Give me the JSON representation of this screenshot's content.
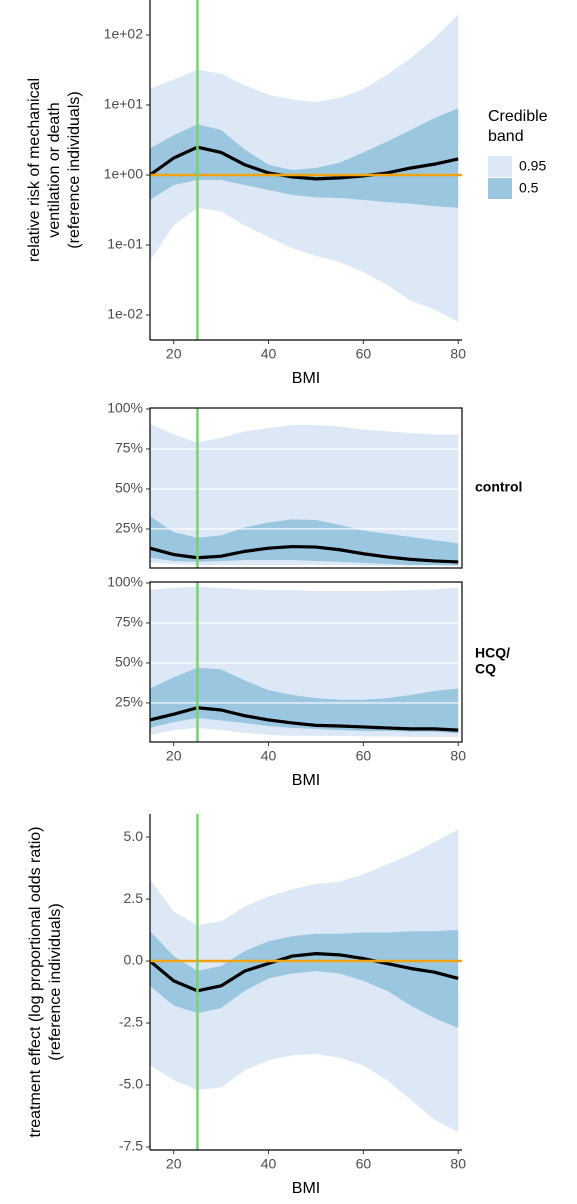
{
  "chart_data": [
    {
      "type": "line",
      "y_scale": "log",
      "ylabel": [
        "relative risk of mechanical",
        "ventilation or death",
        "(reference individuals)"
      ],
      "xlabel": "BMI",
      "xlim": [
        15,
        80.8
      ],
      "xticks": [
        20,
        40,
        60,
        80
      ],
      "ylim": [
        0.0044,
        316
      ],
      "yticks": [
        {
          "value": 0.01,
          "label": "1e-02"
        },
        {
          "value": 0.1,
          "label": "1e-01"
        },
        {
          "value": 1,
          "label": "1e+00"
        },
        {
          "value": 10,
          "label": "1e+01"
        },
        {
          "value": 100,
          "label": "1e+02"
        }
      ],
      "grid": false,
      "vline": 25,
      "vline_color": "#77d26f",
      "hline": 1,
      "hline_color": "#f0a30a",
      "x": [
        15,
        20,
        25,
        30,
        35,
        40,
        45,
        50,
        55,
        60,
        65,
        70,
        75,
        80
      ],
      "bands": [
        {
          "name": "0.95",
          "color": "#dce8f5",
          "upper": [
            17,
            23,
            32,
            28,
            19,
            14,
            12,
            11,
            12.6,
            17,
            27,
            47,
            90,
            195
          ],
          "lower": [
            0.06,
            0.19,
            0.34,
            0.3,
            0.19,
            0.13,
            0.09,
            0.07,
            0.057,
            0.041,
            0.027,
            0.016,
            0.012,
            0.008
          ]
        },
        {
          "name": "0.5",
          "color": "#9ac6e0",
          "upper": [
            2.4,
            3.7,
            5.3,
            4.4,
            2.3,
            1.4,
            1.18,
            1.26,
            1.5,
            2.1,
            3,
            4.4,
            6.5,
            9
          ],
          "lower": [
            0.44,
            0.72,
            0.85,
            0.85,
            0.72,
            0.61,
            0.52,
            0.48,
            0.47,
            0.44,
            0.41,
            0.39,
            0.36,
            0.34
          ]
        }
      ],
      "median": {
        "color": "#000000",
        "values": [
          1,
          1.75,
          2.5,
          2.1,
          1.4,
          1.07,
          0.94,
          0.88,
          0.91,
          0.97,
          1.07,
          1.26,
          1.43,
          1.7
        ]
      },
      "legend": {
        "title": [
          "Credible",
          "band"
        ],
        "position": "right"
      }
    },
    {
      "type": "line",
      "xlabel": "BMI",
      "xlim": [
        15,
        80.8
      ],
      "xticks": [
        20,
        40,
        60,
        80
      ],
      "ylim": [
        0.6,
        100.6
      ],
      "yticks": [
        {
          "value": 25,
          "label": "25%"
        },
        {
          "value": 50,
          "label": "50%"
        },
        {
          "value": 75,
          "label": "75%"
        },
        {
          "value": 100,
          "label": "100%"
        }
      ],
      "grid": true,
      "grid_color": "#ffffff",
      "vline": 25,
      "vline_color": "#77d26f",
      "x": [
        15,
        20,
        25,
        30,
        35,
        40,
        45,
        50,
        55,
        60,
        65,
        70,
        75,
        80
      ],
      "facets": [
        {
          "label": [
            "control"
          ],
          "bands": [
            {
              "name": "0.95",
              "color": "#dce8f5",
              "upper": [
                90.6,
                84,
                79,
                82,
                86,
                88,
                90,
                90,
                89,
                87,
                86,
                85,
                84,
                84
              ],
              "lower": [
                4,
                3,
                2.5,
                2.5,
                2.5,
                2.5,
                2.5,
                2.5,
                2.5,
                2,
                2,
                2,
                2,
                2
              ]
            },
            {
              "name": "0.5",
              "color": "#9ac6e0",
              "upper": [
                33,
                23,
                19.4,
                21,
                26,
                29,
                31,
                30.6,
                27.5,
                24,
                22,
                20,
                18,
                16
              ],
              "lower": [
                7,
                5,
                4.5,
                5,
                5.6,
                5.6,
                5.6,
                5,
                4.5,
                3.8,
                3,
                2.5,
                2.5,
                2.2
              ]
            }
          ],
          "median": {
            "color": "#000000",
            "values": [
              13,
              9,
              7,
              8,
              11,
              13,
              14,
              13.7,
              12,
              9.5,
              7.5,
              6,
              5,
              4.4
            ]
          }
        },
        {
          "label": [
            "HCQ/",
            "CQ"
          ],
          "bands": [
            {
              "name": "0.95",
              "color": "#dce8f5",
              "upper": [
                95.6,
                97,
                97.5,
                97,
                96,
                95.6,
                95.6,
                95,
                95,
                95,
                95,
                95.6,
                96,
                97
              ],
              "lower": [
                5,
                8,
                9.4,
                8,
                6.3,
                5,
                4.5,
                4.4,
                4.4,
                4,
                4,
                3.8,
                3.8,
                3.8
              ]
            },
            {
              "name": "0.5",
              "color": "#9ac6e0",
              "upper": [
                34,
                41,
                47,
                46,
                39,
                33,
                30,
                28,
                27,
                27,
                28,
                30,
                32.5,
                34
              ],
              "lower": [
                9.4,
                13,
                15.6,
                14,
                12.5,
                10.6,
                9.4,
                8.8,
                8,
                7.5,
                7.5,
                7,
                7,
                6
              ]
            }
          ],
          "median": {
            "color": "#000000",
            "values": [
              14.4,
              18,
              22,
              20.6,
              17,
              14.4,
              12.5,
              11,
              10.6,
              10,
              9.4,
              8.8,
              8.8,
              8
            ]
          }
        }
      ]
    },
    {
      "type": "line",
      "ylabel": [
        "treatment effect (log proportional odds ratio)",
        "(reference individuals)"
      ],
      "xlabel": "BMI",
      "xlim": [
        15,
        80.8
      ],
      "xticks": [
        20,
        40,
        60,
        80
      ],
      "ylim": [
        -7.62,
        5.93
      ],
      "yticks": [
        -7.5,
        {
          "value": -5,
          "label": "-5.0"
        },
        -2.5,
        {
          "value": 0,
          "label": "0.0"
        },
        2.5,
        {
          "value": 5,
          "label": "5.0"
        }
      ],
      "grid": false,
      "vline": 25,
      "vline_color": "#77d26f",
      "hline": 0,
      "hline_color": "#f0a30a",
      "x": [
        15,
        20,
        25,
        30,
        35,
        40,
        45,
        50,
        55,
        60,
        65,
        70,
        75,
        80
      ],
      "bands": [
        {
          "name": "0.95",
          "color": "#dce8f5",
          "upper": [
            3.3,
            2.0,
            1.45,
            1.6,
            2.2,
            2.6,
            2.9,
            3.1,
            3.2,
            3.5,
            3.9,
            4.3,
            4.8,
            5.3
          ],
          "lower": [
            -4.2,
            -4.8,
            -5.2,
            -5.1,
            -4.4,
            -4.0,
            -3.8,
            -3.75,
            -3.9,
            -4.2,
            -4.8,
            -5.6,
            -6.4,
            -6.9
          ]
        },
        {
          "name": "0.5",
          "color": "#9ac6e0",
          "upper": [
            1.2,
            0.2,
            -0.4,
            -0.2,
            0.4,
            0.8,
            1.0,
            1.1,
            1.1,
            1.15,
            1.15,
            1.2,
            1.2,
            1.25
          ],
          "lower": [
            -1.0,
            -1.8,
            -2.1,
            -1.9,
            -1.2,
            -0.7,
            -0.5,
            -0.4,
            -0.5,
            -0.8,
            -1.2,
            -1.8,
            -2.3,
            -2.7
          ]
        }
      ],
      "median": {
        "color": "#000000",
        "values": [
          0,
          -0.8,
          -1.2,
          -1.0,
          -0.4,
          -0.1,
          0.2,
          0.3,
          0.25,
          0.1,
          -0.1,
          -0.3,
          -0.45,
          -0.7
        ]
      }
    }
  ]
}
